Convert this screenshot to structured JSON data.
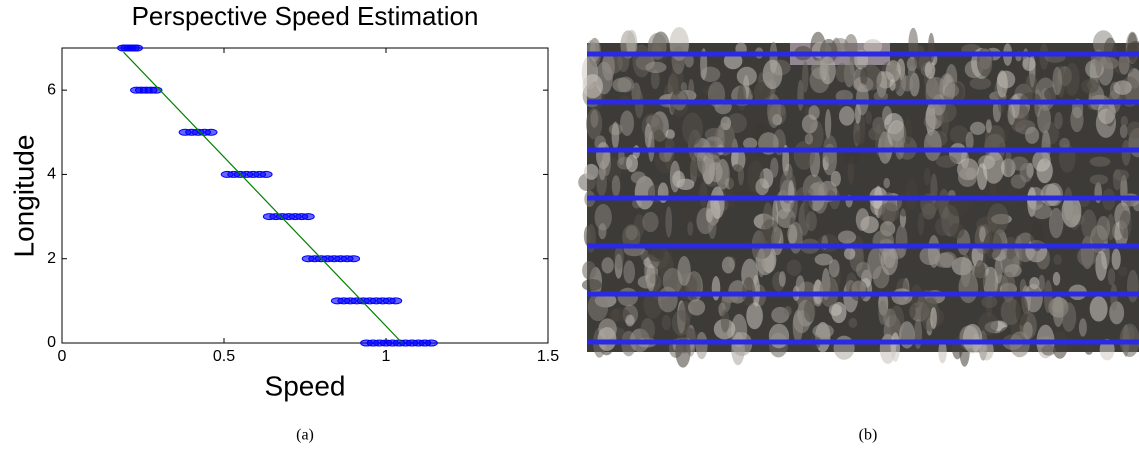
{
  "chart_data": {
    "type": "scatter",
    "title": "Perspective Speed Estimation",
    "x_label": "Speed",
    "y_label": "Longitude",
    "xlim": [
      0,
      1.5
    ],
    "xticks": [
      0,
      0.5,
      1,
      1.5
    ],
    "ylim": [
      0,
      7
    ],
    "yticks": [
      0,
      2,
      4,
      6
    ],
    "series": [
      {
        "color": "#0000ff",
        "x": [
          0.19,
          0.2,
          0.21,
          0.22,
          0.23,
          0.23,
          0.245,
          0.26,
          0.275,
          0.29,
          0.38,
          0.4,
          0.42,
          0.44,
          0.46,
          0.51,
          0.53,
          0.55,
          0.57,
          0.59,
          0.61,
          0.63,
          0.64,
          0.66,
          0.68,
          0.7,
          0.72,
          0.74,
          0.76,
          0.76,
          0.78,
          0.8,
          0.82,
          0.84,
          0.86,
          0.88,
          0.9,
          0.85,
          0.87,
          0.89,
          0.91,
          0.93,
          0.95,
          0.97,
          0.99,
          1.01,
          1.03,
          0.94,
          0.96,
          0.98,
          1.0,
          1.02,
          1.04,
          1.06,
          1.08,
          1.1,
          1.12,
          1.14
        ],
        "y": [
          7,
          7,
          7,
          7,
          7,
          6,
          6,
          6,
          6,
          6,
          5,
          5,
          5,
          5,
          5,
          4,
          4,
          4,
          4,
          4,
          4,
          4,
          3,
          3,
          3,
          3,
          3,
          3,
          3,
          2,
          2,
          2,
          2,
          2,
          2,
          2,
          2,
          1,
          1,
          1,
          1,
          1,
          1,
          1,
          1,
          1,
          1,
          0,
          0,
          0,
          0,
          0,
          0,
          0,
          0,
          0,
          0,
          0
        ]
      }
    ],
    "fit_line": {
      "color": "#008000",
      "x": [
        0.19,
        1.05
      ],
      "y": [
        6.9,
        0
      ]
    }
  },
  "captions": [
    "(a)",
    "(b)"
  ]
}
